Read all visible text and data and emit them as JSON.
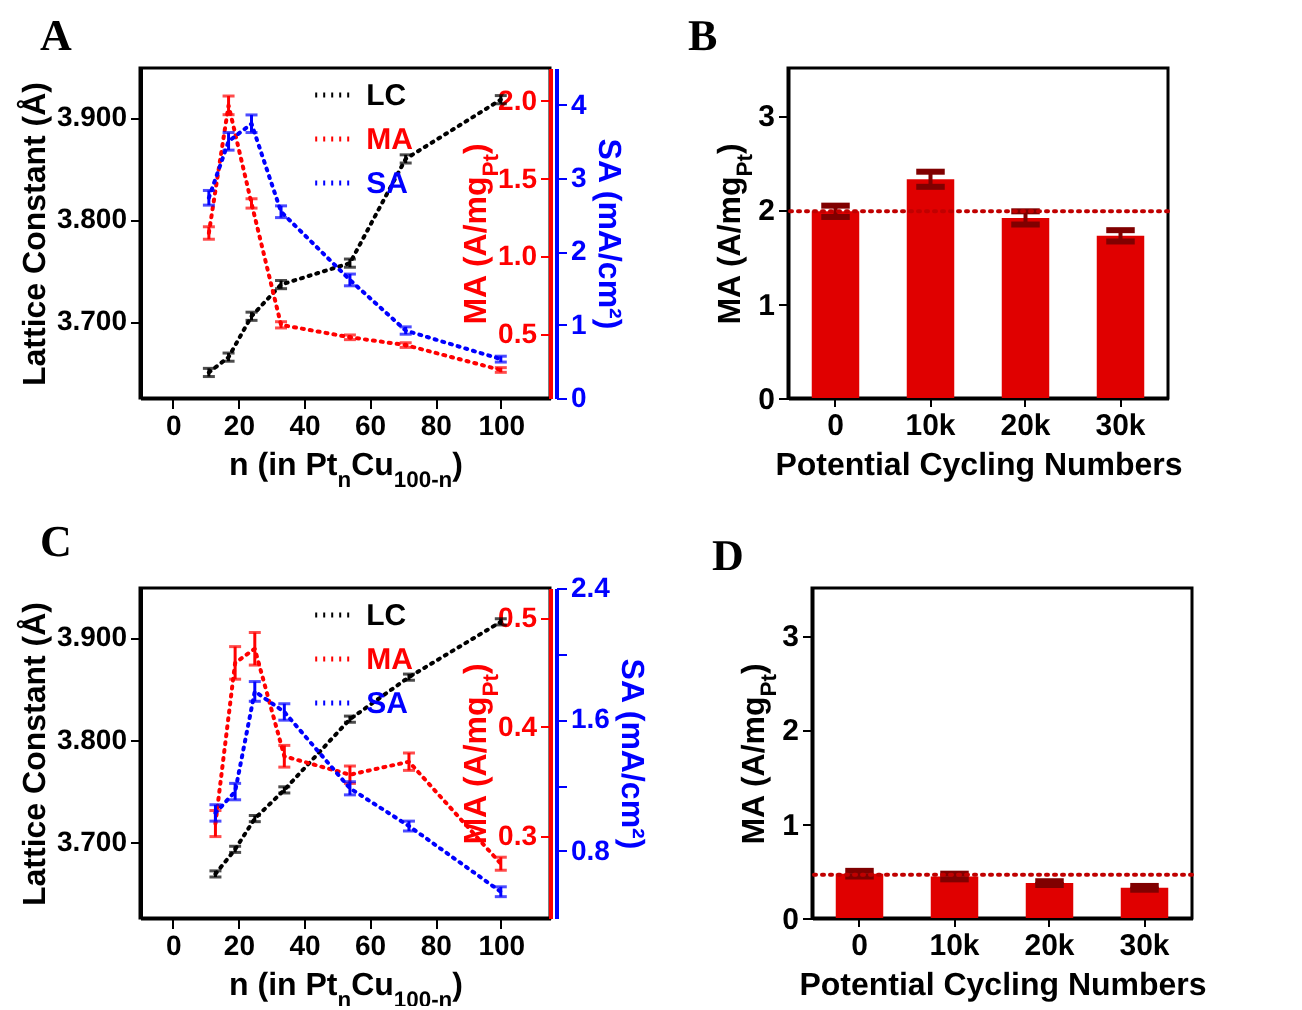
{
  "chart_data": [
    {
      "type": "line",
      "title": "A",
      "xlabel": "n (in Pt$_{n}$Cu$_{100-n}$)",
      "ylabel": "Lattice Constant (Å)",
      "y2label": "MA (A/mg$_{Pt}$)",
      "y3label": "SA (mA/cm²)",
      "xlim": [
        -10,
        115
      ],
      "xticks": [
        0,
        20,
        40,
        60,
        80,
        100
      ],
      "ylim": [
        3.625,
        3.948
      ],
      "yticks": [
        {
          "value": 3.7,
          "label": "3.700"
        },
        {
          "value": 3.8,
          "label": "3.800"
        },
        {
          "value": 3.9,
          "label": "3.900"
        }
      ],
      "y2lim": [
        0.09,
        2.21
      ],
      "y2ticks": [
        {
          "value": 0.5,
          "label": "0.5"
        },
        {
          "value": 1,
          "label": "1.0"
        },
        {
          "value": 1.5,
          "label": "1.5"
        },
        {
          "value": 2,
          "label": "2.0"
        }
      ],
      "y3lim": [
        0,
        4.5
      ],
      "y3ticks": [
        0,
        1,
        2,
        3,
        4
      ],
      "line_style": "dotted",
      "legend": "top",
      "x": [
        11,
        17,
        24,
        33,
        54,
        71,
        100
      ],
      "series": [
        {
          "name": "LC",
          "color": "#000000",
          "values": [
            3.65,
            3.665,
            3.705,
            3.736,
            3.757,
            3.859,
            3.917
          ],
          "errors": [
            0.004,
            0.004,
            0.004,
            0.004,
            0.004,
            0.004,
            0.004
          ]
        },
        {
          "name": "MA",
          "color": "#ff0000",
          "axis": "y2",
          "values": [
            1.15,
            1.97,
            1.34,
            0.56,
            0.48,
            0.43,
            0.27
          ],
          "errors": [
            0.04,
            0.06,
            0.03,
            0.02,
            0.015,
            0.015,
            0.015
          ]
        },
        {
          "name": "SA",
          "color": "#0000ff",
          "axis": "y3",
          "values": [
            2.73,
            3.5,
            3.74,
            2.54,
            1.61,
            0.92,
            0.53
          ],
          "errors": [
            0.1,
            0.12,
            0.12,
            0.08,
            0.08,
            0.05,
            0.04
          ]
        }
      ]
    },
    {
      "type": "bar",
      "title": "B",
      "xlabel": "Potential Cycling Numbers",
      "ylabel": "MA (A/mg$_{Pt}$)",
      "categories": [
        "0",
        "10k",
        "20k",
        "30k"
      ],
      "values": [
        1.98,
        2.32,
        1.91,
        1.72
      ],
      "errors": [
        0.06,
        0.08,
        0.07,
        0.06
      ],
      "color": "#e00000",
      "ylim": [
        0,
        3.5
      ],
      "yticks": [
        0,
        1,
        2,
        3
      ],
      "ref_lines": [
        {
          "axis": "y",
          "value": 1.98,
          "color": "#c00000",
          "line_style": "dotted"
        }
      ]
    },
    {
      "type": "line",
      "title": "C",
      "xlabel": "n (in Pt$_{n}$Cu$_{100-n}$)",
      "ylabel": "Lattice Constant (Å)",
      "y2label": "MA (A/mg$_{Pt}$)",
      "y3label": "SA (mA/cm²)",
      "xlim": [
        -10,
        115
      ],
      "xticks": [
        0,
        20,
        40,
        60,
        80,
        100
      ],
      "ylim": [
        3.626,
        3.948
      ],
      "yticks": [
        {
          "value": 3.7,
          "label": "3.700"
        },
        {
          "value": 3.8,
          "label": "3.800"
        },
        {
          "value": 3.9,
          "label": "3.900"
        }
      ],
      "y2lim": [
        0.224,
        0.528
      ],
      "y2ticks": [
        0.3,
        0.4,
        0.5
      ],
      "y3lim": [
        0.39,
        2.4
      ],
      "y3ticks": [
        0.8,
        {
          "value": 1.2,
          "label": null
        },
        1.6,
        {
          "value": 2,
          "label": null
        },
        2.4
      ],
      "line_style": "dotted",
      "legend": "top",
      "x": [
        13,
        19,
        25,
        34,
        54,
        72,
        100
      ],
      "series": [
        {
          "name": "LC",
          "color": "#000000",
          "values": [
            3.669,
            3.693,
            3.723,
            3.751,
            3.82,
            3.861,
            3.915
          ],
          "errors": [
            0.003,
            0.003,
            0.003,
            0.003,
            0.003,
            0.003,
            0.003
          ]
        },
        {
          "name": "MA",
          "color": "#ff0000",
          "axis": "y2",
          "values": [
            0.311,
            0.459,
            0.472,
            0.373,
            0.356,
            0.368,
            0.274
          ],
          "errors": [
            0.012,
            0.015,
            0.015,
            0.01,
            0.008,
            0.008,
            0.006
          ]
        },
        {
          "name": "SA",
          "color": "#0000ff",
          "axis": "y3",
          "values": [
            1.03,
            1.16,
            1.77,
            1.645,
            1.18,
            0.95,
            0.55
          ],
          "errors": [
            0.05,
            0.05,
            0.06,
            0.05,
            0.04,
            0.03,
            0.03
          ]
        }
      ]
    },
    {
      "type": "bar",
      "title": "D",
      "xlabel": "Potential Cycling Numbers",
      "ylabel": "MA (A/mg$_{Pt}$)",
      "categories": [
        "0",
        "10k",
        "20k",
        "30k"
      ],
      "values": [
        0.47,
        0.44,
        0.37,
        0.32
      ],
      "errors": [
        0.03,
        0.03,
        0.02,
        0.02
      ],
      "color": "#e00000",
      "ylim": [
        0,
        3.5
      ],
      "yticks": [
        0,
        1,
        2,
        3
      ],
      "ref_lines": [
        {
          "axis": "y",
          "value": 0.46,
          "color": "#c00000",
          "line_style": "dotted"
        }
      ]
    }
  ]
}
